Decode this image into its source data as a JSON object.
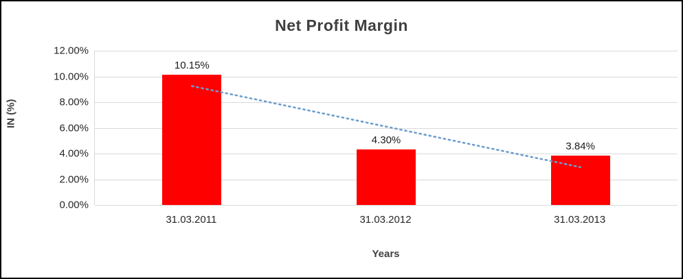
{
  "chart_data": {
    "type": "bar",
    "title": "Net Profit Margin",
    "xlabel": "Years",
    "ylabel": "IN (%)",
    "categories": [
      "31.03.2011",
      "31.03.2012",
      "31.03.2013"
    ],
    "values": [
      10.15,
      4.3,
      3.84
    ],
    "data_labels": [
      "10.15%",
      "4.30%",
      "3.84%"
    ],
    "ylim": [
      0,
      12
    ],
    "ytick_step": 2,
    "ytick_labels": [
      "0.00%",
      "2.00%",
      "4.00%",
      "6.00%",
      "8.00%",
      "10.00%",
      "12.00%"
    ],
    "grid": true,
    "legend": "none",
    "bar_color": "#fe0000",
    "gridline_color": "#d9d9d9",
    "trendline": {
      "type": "linear",
      "start_value": 9.25,
      "end_value": 2.94,
      "color": "#6b9ece",
      "style": "dotted"
    }
  }
}
